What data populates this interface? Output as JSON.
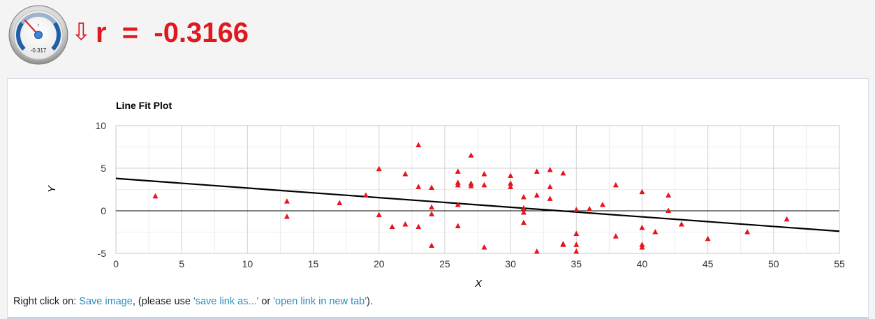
{
  "header": {
    "gauge_label": "r",
    "gauge_value": "-0.317",
    "gauge_fraction": 0.342,
    "arrow": "⇩",
    "r_text": "r  =  -0.3166"
  },
  "chart_data": {
    "type": "scatter",
    "title": "Line Fit Plot",
    "xlabel": "X",
    "ylabel": "Y",
    "xlim": [
      0,
      55
    ],
    "ylim": [
      -5,
      10
    ],
    "xticks": [
      0,
      5,
      10,
      15,
      20,
      25,
      30,
      35,
      40,
      45,
      50,
      55
    ],
    "yticks": [
      -5,
      0,
      5,
      10
    ],
    "grid": true,
    "marker_color": "#e8131b",
    "fit_line": {
      "x": [
        0,
        55
      ],
      "y": [
        3.8,
        -2.4
      ]
    },
    "points": [
      [
        3,
        1.7
      ],
      [
        13,
        1.1
      ],
      [
        13,
        -0.7
      ],
      [
        17,
        0.9
      ],
      [
        19,
        1.8
      ],
      [
        20,
        4.9
      ],
      [
        20,
        -0.5
      ],
      [
        21,
        -1.9
      ],
      [
        22,
        4.3
      ],
      [
        22,
        -1.6
      ],
      [
        23,
        7.7
      ],
      [
        23,
        2.8
      ],
      [
        23,
        -1.9
      ],
      [
        24,
        2.7
      ],
      [
        24,
        0.4
      ],
      [
        24,
        -0.4
      ],
      [
        24,
        -4.1
      ],
      [
        26,
        4.6
      ],
      [
        26,
        3.3
      ],
      [
        26,
        3.0
      ],
      [
        26,
        0.7
      ],
      [
        26,
        -1.8
      ],
      [
        27,
        6.5
      ],
      [
        27,
        3.2
      ],
      [
        27,
        2.9
      ],
      [
        28,
        4.3
      ],
      [
        28,
        3.0
      ],
      [
        28,
        -4.3
      ],
      [
        30,
        4.1
      ],
      [
        30,
        3.2
      ],
      [
        30,
        2.8
      ],
      [
        31,
        1.6
      ],
      [
        31,
        0.3
      ],
      [
        31,
        -0.2
      ],
      [
        31,
        -1.4
      ],
      [
        32,
        4.6
      ],
      [
        32,
        1.8
      ],
      [
        32,
        -4.8
      ],
      [
        33,
        4.8
      ],
      [
        33,
        2.8
      ],
      [
        33,
        1.4
      ],
      [
        34,
        4.4
      ],
      [
        34,
        -3.9
      ],
      [
        34,
        -4.0
      ],
      [
        35,
        0.1
      ],
      [
        35,
        -2.7
      ],
      [
        35,
        -4.0
      ],
      [
        35,
        -4.8
      ],
      [
        36,
        0.2
      ],
      [
        37,
        0.7
      ],
      [
        38,
        3.0
      ],
      [
        38,
        -3.0
      ],
      [
        40,
        2.2
      ],
      [
        40,
        -2.0
      ],
      [
        40,
        -4.0
      ],
      [
        40,
        -4.3
      ],
      [
        41,
        -2.5
      ],
      [
        42,
        1.8
      ],
      [
        42,
        0.0
      ],
      [
        43,
        -1.6
      ],
      [
        45,
        -3.3
      ],
      [
        48,
        -2.5
      ],
      [
        51,
        -1.0
      ]
    ]
  },
  "footer": {
    "prefix": "Right click on: ",
    "save_image": "Save image",
    "middle": ", (please use ",
    "save_link": "'save link as...'",
    "or": " or ",
    "open_link": "'open link in new tab'",
    "suffix": ")."
  }
}
